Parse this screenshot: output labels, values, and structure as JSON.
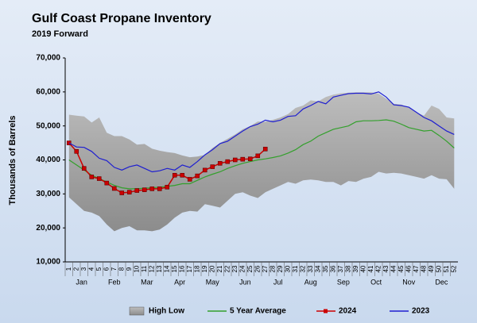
{
  "chart_data": {
    "type": "line",
    "title": "Gulf Coast Propane Inventory",
    "subtitle": "2019 Forward",
    "y_label": "Thousands of Barrels",
    "categories": [
      "1",
      "2",
      "3",
      "4",
      "5",
      "6",
      "7",
      "8",
      "9",
      "10",
      "11",
      "12",
      "13",
      "14",
      "15",
      "16",
      "17",
      "18",
      "19",
      "20",
      "21",
      "22",
      "23",
      "24",
      "25",
      "26",
      "27",
      "28",
      "29",
      "30",
      "31",
      "32",
      "33",
      "34",
      "35",
      "36",
      "37",
      "38",
      "39",
      "40",
      "41",
      "42",
      "43",
      "44",
      "45",
      "46",
      "47",
      "48",
      "49",
      "50",
      "51",
      "52"
    ],
    "months": [
      "Jan",
      "Feb",
      "Mar",
      "Apr",
      "May",
      "Jun",
      "Jul",
      "Aug",
      "Sep",
      "Oct",
      "Nov",
      "Dec"
    ],
    "ylim": [
      10000,
      70000
    ],
    "yticks": [
      {
        "value": 10000,
        "label": "10,000"
      },
      {
        "value": 20000,
        "label": "20,000"
      },
      {
        "value": 30000,
        "label": "30,000"
      },
      {
        "value": 40000,
        "label": "40,000"
      },
      {
        "value": 50000,
        "label": "50,000"
      },
      {
        "value": 60000,
        "label": "60,000"
      },
      {
        "value": 70000,
        "label": "70,000"
      }
    ],
    "grid": false,
    "legend": "bottom",
    "series": [
      {
        "name": "High Low",
        "color": "#a6a6a6",
        "high": [
          53300,
          53000,
          52800,
          51000,
          52500,
          48000,
          47000,
          47000,
          46000,
          44500,
          44700,
          43300,
          42700,
          42300,
          42000,
          41300,
          40800,
          41000,
          41500,
          43500,
          45000,
          46200,
          47500,
          49000,
          50000,
          51300,
          51200,
          51800,
          52500,
          53500,
          55300,
          56000,
          57500,
          57200,
          58500,
          59200,
          59600,
          59800,
          59900,
          59900,
          59900,
          59500,
          58000,
          56500,
          56300,
          55500,
          54000,
          53000,
          56000,
          55000,
          52500,
          52200
        ],
        "low": [
          29000,
          27000,
          25000,
          24500,
          23500,
          21000,
          19000,
          20000,
          20500,
          19300,
          19300,
          19000,
          19500,
          21000,
          23000,
          24500,
          25000,
          24800,
          27000,
          26500,
          26000,
          28000,
          30000,
          30500,
          29500,
          28800,
          30500,
          31500,
          32500,
          33500,
          33000,
          34000,
          34200,
          34000,
          33500,
          33500,
          32500,
          33800,
          33500,
          34500,
          35000,
          36500,
          36000,
          36200,
          36000,
          35500,
          35000,
          34500,
          35500,
          34500,
          34300,
          31500
        ]
      },
      {
        "name": "5 Year Average",
        "color": "#33a02c",
        "values": [
          40000,
          38500,
          37000,
          35500,
          34500,
          33500,
          32500,
          31800,
          31500,
          31500,
          31700,
          31800,
          32000,
          32200,
          32500,
          33000,
          33000,
          34000,
          35000,
          35800,
          36500,
          37500,
          38300,
          39000,
          39500,
          40000,
          40300,
          40700,
          41200,
          42000,
          43000,
          44500,
          45500,
          47000,
          48000,
          49000,
          49500,
          50000,
          51200,
          51500,
          51500,
          51600,
          51800,
          51400,
          50500,
          49500,
          49000,
          48500,
          48700,
          47200,
          45500,
          43500
        ]
      },
      {
        "name": "2024",
        "color": "#cc0000",
        "marker": "square",
        "values": [
          45000,
          42500,
          37500,
          35000,
          34500,
          33200,
          31600,
          30300,
          30500,
          31000,
          31200,
          31500,
          31500,
          32000,
          35500,
          35500,
          34300,
          35300,
          37000,
          38000,
          39000,
          39500,
          40000,
          40200,
          40300,
          41200,
          43200,
          null,
          null,
          null,
          null,
          null,
          null,
          null,
          null,
          null,
          null,
          null,
          null,
          null,
          null,
          null,
          null,
          null,
          null,
          null,
          null,
          null,
          null,
          null,
          null,
          null
        ]
      },
      {
        "name": "2023",
        "color": "#1f1fd0",
        "values": [
          45000,
          43800,
          43700,
          42500,
          40500,
          39800,
          37800,
          37000,
          38000,
          38500,
          37500,
          36500,
          36800,
          37500,
          37000,
          38500,
          37800,
          39500,
          41500,
          43000,
          44800,
          45500,
          47000,
          48500,
          49800,
          50500,
          51700,
          51200,
          51700,
          52800,
          53000,
          55000,
          56000,
          57200,
          56500,
          58500,
          59000,
          59500,
          59600,
          59600,
          59400,
          60000,
          58500,
          56200,
          56000,
          55500,
          54000,
          52500,
          51500,
          50000,
          48500,
          47500
        ]
      }
    ]
  }
}
